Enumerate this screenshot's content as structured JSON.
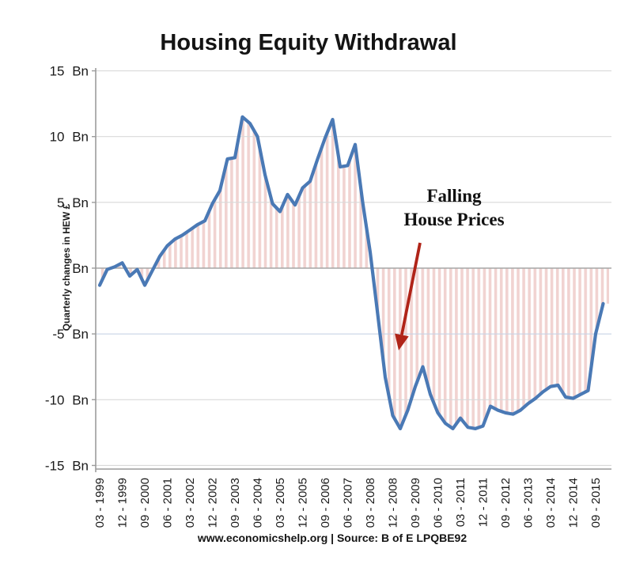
{
  "title": "Housing Equity Withdrawal",
  "footer": "www.economicshelp.org | Source: B of E LPQBE92",
  "annotation": {
    "line1": "Falling",
    "line2": "House Prices"
  },
  "y_axis": {
    "title": "Quarterly changes in HEW £",
    "ticks": [
      {
        "label": "15 Bn",
        "value": 15
      },
      {
        "label": "10 Bn",
        "value": 10
      },
      {
        "label": "5 Bn",
        "value": 5
      },
      {
        "label": "Bn",
        "value": 0
      },
      {
        "label": "-5 Bn",
        "value": -5
      },
      {
        "label": "-10 Bn",
        "value": -10
      },
      {
        "label": "-15 Bn",
        "value": -15
      }
    ]
  },
  "x_axis": {
    "tick_labels": [
      "03 - 1999",
      "12 - 1999",
      "09 - 2000",
      "06 - 2001",
      "03 - 2002",
      "12 - 2002",
      "09 - 2003",
      "06 - 2004",
      "03 - 2005",
      "12 - 2005",
      "09 - 2006",
      "06 - 2007",
      "03 - 2008",
      "12 - 2008",
      "09 - 2009",
      "06 - 2010",
      "03 - 2011",
      "12 - 2011",
      "09 - 2012",
      "06 - 2013",
      "03 - 2014",
      "12 - 2014",
      "09 - 2015"
    ]
  },
  "colors": {
    "line": "#4A79B5",
    "stripe_fill": "#F1D3D1",
    "gridline": "#D9D9D9",
    "gridline_minus5": "#C7D3E6",
    "zero_line": "#A6A6A6",
    "axis": "#9C9C9C",
    "arrow": "#B02418",
    "tick_text": "#1A1A1A"
  },
  "chart_data": {
    "type": "line",
    "title": "Housing Equity Withdrawal",
    "ylabel": "Quarterly changes in HEW £",
    "unit": "£ billion per quarter",
    "frequency": "quarterly",
    "start_quarter": "1999-Q1",
    "end_quarter": "2015-Q4",
    "ylim": [
      -15,
      15
    ],
    "ytick_interval": 5,
    "x_tick_labels_shown_every_n_quarters": 3,
    "fill_style": "vertical red stripes between line and zero baseline",
    "annotation": "Falling House Prices (red arrow pointing at 2008 collapse)",
    "values": [
      -1.3,
      -0.1,
      0.1,
      0.4,
      -0.6,
      -0.1,
      -1.3,
      -0.2,
      0.9,
      1.7,
      2.2,
      2.5,
      2.9,
      3.3,
      3.6,
      4.9,
      5.9,
      8.3,
      8.4,
      11.5,
      11.0,
      10.0,
      7.1,
      4.9,
      4.3,
      5.6,
      4.8,
      6.1,
      6.6,
      8.3,
      9.9,
      11.3,
      7.7,
      7.8,
      9.4,
      5.0,
      1.2,
      -3.5,
      -8.3,
      -11.2,
      -12.2,
      -10.8,
      -9.0,
      -7.5,
      -9.6,
      -11.0,
      -11.8,
      -12.2,
      -11.4,
      -12.1,
      -12.2,
      -12.0,
      -10.5,
      -10.8,
      -11.0,
      -11.1,
      -10.8,
      -10.3,
      -9.9,
      -9.4,
      -9.0,
      -8.9,
      -9.8,
      -9.9,
      -9.6,
      -9.3,
      -5.0,
      -2.7
    ]
  }
}
